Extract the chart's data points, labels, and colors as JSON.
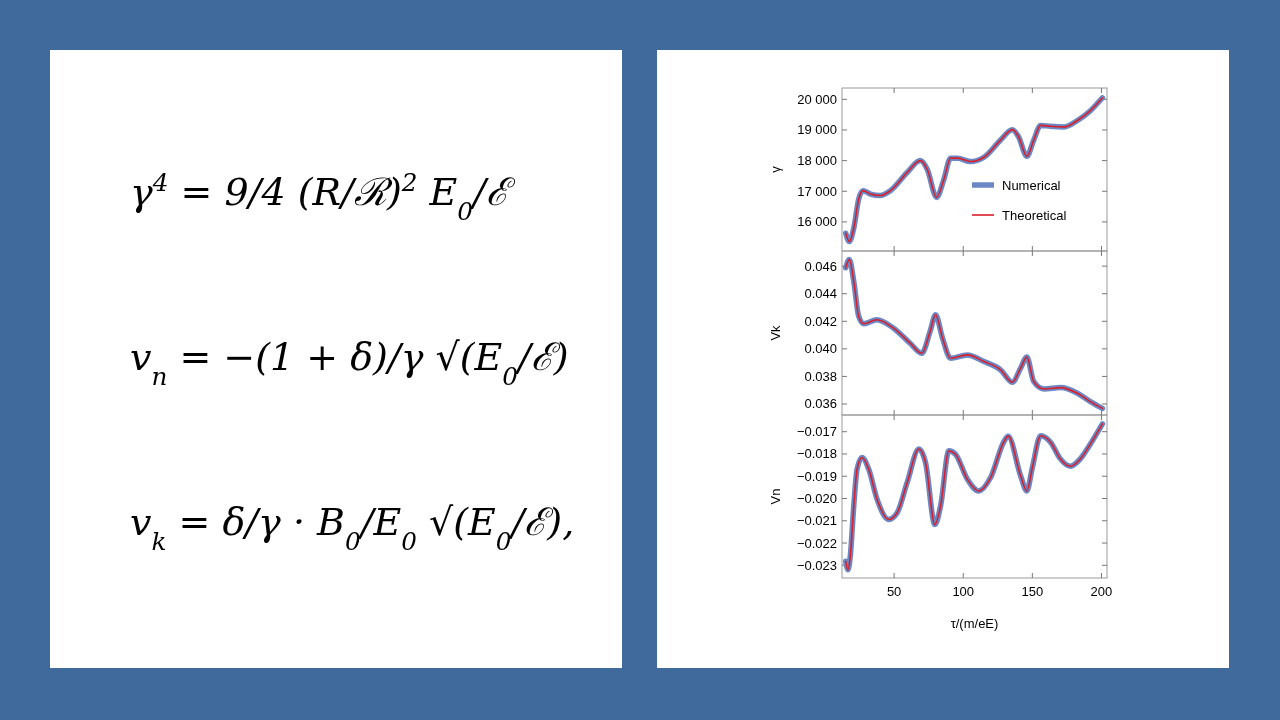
{
  "chart_data": [
    {
      "type": "other",
      "annotations": [
        "γ$^{4}$ = 9/4 (R/ℛ)$^{2}$ E$_{0}$/ℰ",
        "v$_{n}$ = −(1 + δ)/γ √(E$_{0}$/ℰ)",
        "v$_{k}$ = δ/γ · B$_{0}$/E$_{0}$ √(E$_{0}$/ℰ),"
      ]
    },
    {
      "type": "line",
      "ylabel": "γ",
      "legend": "bottom right",
      "grid": false,
      "tick_labels": "y",
      "xlim": [
        12.3,
        204
      ],
      "xticks": [
        {
          "value": 50,
          "label": null
        },
        {
          "value": 100,
          "label": null
        },
        {
          "value": 150,
          "label": null
        },
        {
          "value": 200,
          "label": null
        }
      ],
      "ylim": [
        15050,
        20370
      ],
      "yticks": [
        {
          "value": 16000,
          "label": "16 000"
        },
        {
          "value": 17000,
          "label": "17 000"
        },
        {
          "value": 18000,
          "label": "18 000"
        },
        {
          "value": 19000,
          "label": "19 000"
        },
        {
          "value": 20000,
          "label": "20 000"
        }
      ],
      "x": [
        15,
        17.6,
        20.8,
        24.4,
        27.5,
        32.8,
        40,
        47.3,
        59.4,
        69,
        74,
        80.7,
        86,
        90.8,
        96,
        105,
        115,
        127,
        135.5,
        140,
        146,
        151,
        156,
        163,
        173,
        182.6,
        192,
        200.7
      ],
      "series": [
        {
          "name": "Numerical",
          "color": "#6b88c4",
          "values": [
            15630,
            15360,
            15790,
            16750,
            17020,
            16910,
            16860,
            17020,
            17610,
            18000,
            17710,
            16800,
            17390,
            18080,
            18080,
            17970,
            18110,
            18670,
            19010,
            18780,
            18140,
            18670,
            19150,
            19120,
            19100,
            19310,
            19630,
            20050
          ]
        },
        {
          "name": "Theoretical",
          "color": "#d9202a",
          "values": [
            15630,
            15360,
            15790,
            16750,
            17020,
            16910,
            16860,
            17020,
            17610,
            18000,
            17710,
            16800,
            17390,
            18080,
            18080,
            17970,
            18110,
            18670,
            19010,
            18780,
            18140,
            18670,
            19150,
            19120,
            19100,
            19310,
            19630,
            20050
          ]
        }
      ]
    },
    {
      "type": "line",
      "ylabel": "Vk",
      "grid": false,
      "tick_labels": "y",
      "xlim": [
        12.3,
        204
      ],
      "xticks": [
        {
          "value": 50,
          "label": null
        },
        {
          "value": 100,
          "label": null
        },
        {
          "value": 150,
          "label": null
        },
        {
          "value": 200,
          "label": null
        }
      ],
      "ylim": [
        0.0352,
        0.0471
      ],
      "yticks": [
        {
          "value": 0.036,
          "label": "0.036"
        },
        {
          "value": 0.038,
          "label": "0.038"
        },
        {
          "value": 0.04,
          "label": "0.040"
        },
        {
          "value": 0.042,
          "label": "0.042"
        },
        {
          "value": 0.044,
          "label": "0.044"
        },
        {
          "value": 0.046,
          "label": "0.046"
        }
      ],
      "x": [
        15,
        17.6,
        20.8,
        24.4,
        28,
        37.5,
        49.6,
        61.6,
        70,
        76,
        80,
        85,
        90.8,
        103,
        115,
        127,
        135.5,
        141.5,
        146,
        151,
        158.4,
        170.5,
        182.6,
        192,
        200.7
      ],
      "series": [
        {
          "color": "#6b88c4",
          "values": [
            0.04588,
            0.04649,
            0.0449,
            0.04235,
            0.04182,
            0.04211,
            0.0415,
            0.04041,
            0.03968,
            0.04125,
            0.04247,
            0.04078,
            0.03932,
            0.03956,
            0.03908,
            0.03848,
            0.03758,
            0.0386,
            0.0394,
            0.03763,
            0.03709,
            0.03719,
            0.03678,
            0.03617,
            0.03568
          ]
        },
        {
          "color": "#d9202a",
          "values": [
            0.04588,
            0.04649,
            0.0449,
            0.04235,
            0.04182,
            0.04211,
            0.0415,
            0.04041,
            0.03968,
            0.04125,
            0.04247,
            0.04078,
            0.03932,
            0.03956,
            0.03908,
            0.03848,
            0.03758,
            0.0386,
            0.0394,
            0.03763,
            0.03709,
            0.03719,
            0.03678,
            0.03617,
            0.03568
          ]
        }
      ]
    },
    {
      "type": "line",
      "ylabel": "Vn",
      "xlabel": "τ/(m/eE)",
      "grid": false,
      "xlim": [
        12.3,
        204
      ],
      "xticks": [
        50,
        100,
        150,
        200
      ],
      "ylim": [
        -0.02357,
        -0.01625
      ],
      "yticks": [
        {
          "value": -0.023,
          "label": "−0.023"
        },
        {
          "value": -0.022,
          "label": "−0.022"
        },
        {
          "value": -0.021,
          "label": "−0.021"
        },
        {
          "value": -0.02,
          "label": "−0.020"
        },
        {
          "value": -0.019,
          "label": "−0.019"
        },
        {
          "value": -0.018,
          "label": "−0.018"
        },
        {
          "value": -0.017,
          "label": "−0.017"
        }
      ],
      "x": [
        15,
        16.6,
        18.3,
        20.8,
        23.2,
        26.8,
        31.6,
        37.7,
        46.1,
        52.2,
        59.4,
        67.9,
        72.7,
        79.5,
        83.6,
        89.6,
        94.4,
        103,
        111.2,
        119.8,
        129.4,
        132.5,
        141.5,
        146,
        150,
        156,
        163.3,
        170,
        177.5,
        185,
        191,
        200.7
      ],
      "series": [
        {
          "color": "#6b88c4",
          "values": [
            -0.02282,
            -0.0232,
            -0.02259,
            -0.02034,
            -0.01868,
            -0.01816,
            -0.01868,
            -0.02004,
            -0.02094,
            -0.02064,
            -0.01929,
            -0.01778,
            -0.01838,
            -0.02117,
            -0.02034,
            -0.01786,
            -0.01801,
            -0.01914,
            -0.01966,
            -0.01906,
            -0.01745,
            -0.0172,
            -0.01898,
            -0.01966,
            -0.01861,
            -0.01718,
            -0.01748,
            -0.0182,
            -0.01855,
            -0.0182,
            -0.01765,
            -0.01665
          ]
        },
        {
          "color": "#d9202a",
          "values": [
            -0.02282,
            -0.0232,
            -0.02259,
            -0.02034,
            -0.01868,
            -0.01816,
            -0.01868,
            -0.02004,
            -0.02094,
            -0.02064,
            -0.01929,
            -0.01778,
            -0.01838,
            -0.02117,
            -0.02034,
            -0.01786,
            -0.01801,
            -0.01914,
            -0.01966,
            -0.01906,
            -0.01745,
            -0.0172,
            -0.01898,
            -0.01966,
            -0.01861,
            -0.01718,
            -0.01748,
            -0.0182,
            -0.01855,
            -0.0182,
            -0.01765,
            -0.01665
          ]
        }
      ]
    }
  ]
}
